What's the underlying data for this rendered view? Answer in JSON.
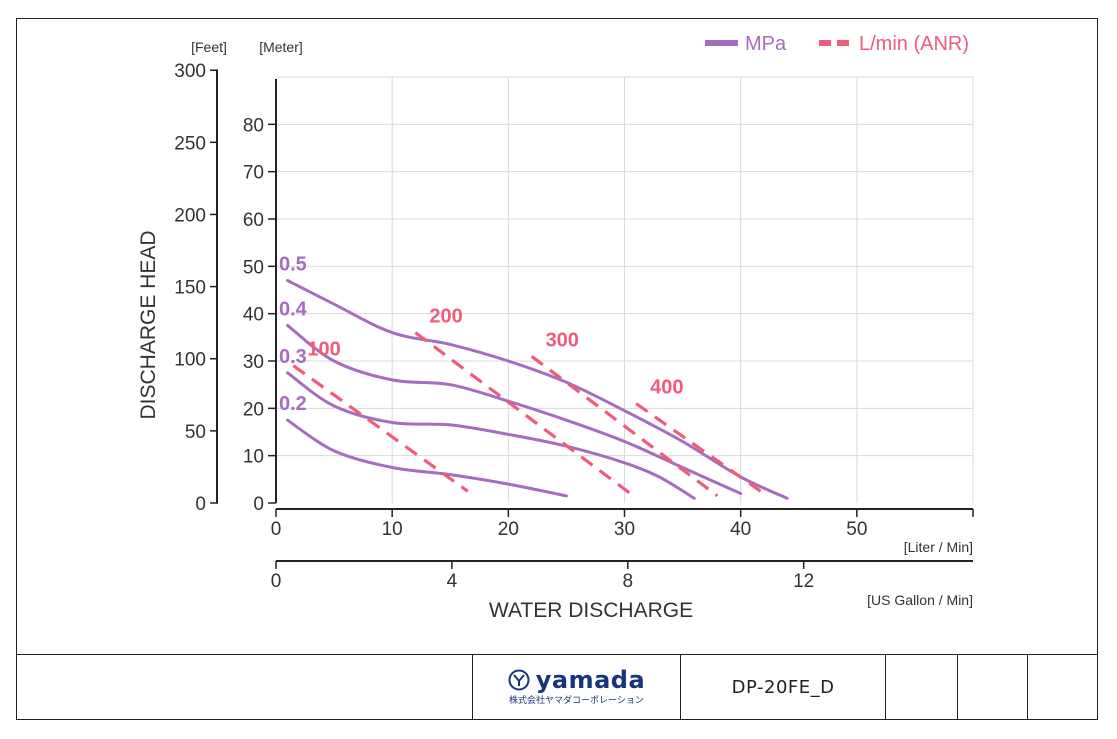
{
  "chart_data": {
    "type": "line",
    "title": "",
    "xlabel": "WATER DISCHARGE",
    "ylabel": "DISCHARGE HEAD",
    "x_unit_primary": "[Liter / Min]",
    "x_unit_secondary": "[US Gallon / Min]",
    "y_unit_feet": "[Feet]",
    "y_unit_meter": "[Meter]",
    "xlim": [
      0,
      60
    ],
    "ylim": [
      0,
      90
    ],
    "grid": true,
    "legend_position": "top-right",
    "x_ticks": [
      0,
      10,
      20,
      30,
      40,
      50
    ],
    "x2_ticks": [
      0,
      4,
      8,
      12
    ],
    "y_meter_ticks": [
      0,
      10,
      20,
      30,
      40,
      50,
      60,
      70,
      80
    ],
    "y_feet_ticks": [
      0,
      50,
      100,
      150,
      200,
      250,
      300
    ],
    "legend": [
      {
        "name": "MPa",
        "style": "solid",
        "color": "#a66dbf"
      },
      {
        "name": "L/min (ANR)",
        "style": "dashed",
        "color": "#ef5b78"
      }
    ],
    "series": [
      {
        "name": "0.5",
        "group": "MPa",
        "label": "0.5",
        "points": [
          [
            1,
            47
          ],
          [
            5,
            42
          ],
          [
            10,
            36
          ],
          [
            15,
            33.5
          ],
          [
            20,
            30
          ],
          [
            25,
            25.5
          ],
          [
            30,
            19.5
          ],
          [
            35,
            13
          ],
          [
            40,
            5.5
          ],
          [
            44,
            1
          ]
        ]
      },
      {
        "name": "0.4",
        "group": "MPa",
        "label": "0.4",
        "points": [
          [
            1,
            37.5
          ],
          [
            5,
            30
          ],
          [
            10,
            26
          ],
          [
            15,
            25
          ],
          [
            20,
            21.5
          ],
          [
            25,
            17.5
          ],
          [
            30,
            13
          ],
          [
            35,
            7.5
          ],
          [
            40,
            2
          ]
        ]
      },
      {
        "name": "0.3",
        "group": "MPa",
        "label": "0.3",
        "points": [
          [
            1,
            27.5
          ],
          [
            5,
            20.5
          ],
          [
            10,
            17
          ],
          [
            15,
            16.5
          ],
          [
            20,
            14.5
          ],
          [
            25,
            12
          ],
          [
            30,
            8.5
          ],
          [
            33,
            5.5
          ],
          [
            36,
            1
          ]
        ]
      },
      {
        "name": "0.2",
        "group": "MPa",
        "label": "0.2",
        "points": [
          [
            1,
            17.5
          ],
          [
            5,
            11
          ],
          [
            10,
            7.5
          ],
          [
            15,
            6
          ],
          [
            20,
            4
          ],
          [
            25,
            1.5
          ]
        ]
      },
      {
        "name": "100",
        "group": "L/min (ANR)",
        "label": "100",
        "points": [
          [
            1.5,
            29
          ],
          [
            16.5,
            2.5
          ]
        ]
      },
      {
        "name": "200",
        "group": "L/min (ANR)",
        "label": "200",
        "points": [
          [
            12,
            36
          ],
          [
            30.5,
            2
          ]
        ]
      },
      {
        "name": "300",
        "group": "L/min (ANR)",
        "label": "300",
        "points": [
          [
            22,
            31
          ],
          [
            38,
            1.5
          ]
        ]
      },
      {
        "name": "400",
        "group": "L/min (ANR)",
        "label": "400",
        "points": [
          [
            31,
            21
          ],
          [
            42,
            2
          ]
        ]
      }
    ]
  },
  "footer": {
    "brand_name": "yamada",
    "brand_subtitle": "株式会社ヤマダコーポレーション",
    "doc_code": "DP-20FE_D"
  },
  "colors": {
    "mpa": "#a66dbf",
    "anr": "#ef5b78",
    "grid": "#d9d9d9",
    "brand": "#16357a"
  }
}
